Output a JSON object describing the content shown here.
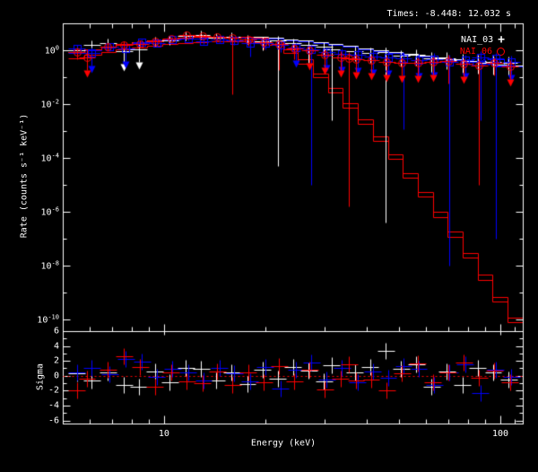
{
  "title": "Times: -8.448: 12.032 s",
  "colors": {
    "background": "#000000",
    "frame": "#ffffff",
    "nai03": "#ffffff",
    "nai06": "#ff0000",
    "nai07": "#0000ff",
    "zero_line": "#ff0000"
  },
  "legend": [
    {
      "label": "NAI_03",
      "symbol": "plus",
      "color": "#ffffff"
    },
    {
      "label": "NAI_06",
      "symbol": "circle",
      "color": "#ff0000"
    },
    {
      "label": "NAI_07",
      "symbol": "square",
      "color": "#0000ff"
    }
  ],
  "axes": {
    "xlabel": "Energy (keV)",
    "ylabel_main": "Rate (counts s⁻¹ keV⁻¹)",
    "ylabel_sigma": "Sigma",
    "x_major_ticks": [
      10,
      100
    ],
    "x_major_labels": [
      "10",
      "100"
    ],
    "x_minor_ticks": [
      6,
      7,
      8,
      9,
      20,
      30,
      40,
      50,
      60,
      70,
      80,
      90,
      110
    ],
    "y_major_exponents": [
      0,
      -2,
      -4,
      -6,
      -8,
      -10
    ],
    "y_minor_exponents": [
      -1,
      -3,
      -5,
      -7,
      -9
    ],
    "sigma_major_ticks": [
      6,
      4,
      2,
      0,
      -2,
      -4,
      -6
    ],
    "sigma_minor_ticks": [
      5,
      3,
      1,
      -1,
      -3,
      -5
    ]
  },
  "chart_data": {
    "type": "scatter",
    "subtype": "count-spectrum-with-residuals",
    "x_scale": "log",
    "y_scale": "log",
    "xlim": [
      5.0,
      116.6
    ],
    "ylim": [
      3e-11,
      8.5
    ],
    "sigma_ylim": [
      -6.5,
      6.9
    ],
    "grid": false,
    "legend_position": "top-right-inside",
    "point_format": [
      "energy_keV",
      "rate",
      "err_lo",
      "err_hi",
      "upper_limit"
    ],
    "bin_edges": [
      5.2,
      5.8,
      6.5,
      7.2,
      8.0,
      8.9,
      9.9,
      11.0,
      12.2,
      13.5,
      15.0,
      16.6,
      18.4,
      20.4,
      22.6,
      25.0,
      27.7,
      30.7,
      34.0,
      37.7,
      41.8,
      46.3,
      51.3,
      56.8,
      63.0,
      69.8,
      77.3,
      85.6,
      94.9,
      105.1,
      116.5
    ],
    "models": [
      {
        "name": "NAI_03 model",
        "color": "#ffffff",
        "values": [
          0.85,
          1.1,
          1.4,
          1.7,
          2.0,
          2.3,
          2.6,
          2.85,
          3.05,
          3.2,
          3.25,
          3.2,
          3.05,
          2.85,
          2.6,
          2.3,
          2.0,
          1.7,
          1.45,
          1.2,
          1.0,
          0.85,
          0.72,
          0.62,
          0.53,
          0.46,
          0.4,
          0.35,
          0.3,
          0.27
        ]
      },
      {
        "name": "NAI_07 model",
        "color": "#0000ff",
        "values": [
          0.78,
          1.0,
          1.3,
          1.56,
          1.84,
          2.12,
          2.4,
          2.62,
          2.8,
          2.94,
          3.0,
          2.94,
          2.8,
          2.62,
          2.4,
          2.12,
          1.84,
          1.56,
          1.33,
          1.1,
          0.92,
          0.78,
          0.66,
          0.57,
          0.49,
          0.42,
          0.37,
          0.32,
          0.28,
          0.25
        ]
      },
      {
        "name": "NAI_06 model lower",
        "color": "#ff0000",
        "values": [
          0.5,
          0.66,
          0.85,
          1.05,
          1.25,
          1.45,
          1.65,
          1.85,
          2.0,
          2.1,
          2.15,
          2.1,
          1.95,
          1.6,
          0.8,
          0.32,
          0.1,
          0.028,
          0.0075,
          0.0019,
          0.00044,
          9e-05,
          1.8e-05,
          3.6e-06,
          6.5e-07,
          1.2e-07,
          2e-08,
          3e-09,
          4.7e-10,
          8e-11
        ]
      },
      {
        "name": "NAI_06 model",
        "color": "#ff0000",
        "values": [
          0.85,
          1.1,
          1.4,
          1.7,
          2.0,
          2.3,
          2.6,
          2.85,
          3.05,
          3.2,
          3.25,
          3.15,
          2.95,
          2.4,
          1.1,
          0.45,
          0.14,
          0.04,
          0.011,
          0.0028,
          0.00065,
          0.00014,
          2.8e-05,
          5.5e-06,
          1e-06,
          1.8e-07,
          3e-08,
          4.5e-09,
          7e-10,
          1.2e-10
        ]
      }
    ],
    "series": [
      {
        "name": "NAI_03",
        "color": "#ffffff",
        "marker": "plus",
        "points": [
          [
            5.5,
            1.0,
            0.55,
            1.5,
            0
          ],
          [
            6.1,
            1.55,
            1.0,
            2.1,
            0
          ],
          [
            6.8,
            1.8,
            1.25,
            2.4,
            0
          ],
          [
            7.6,
            0.95,
            0.3,
            1.6,
            1
          ],
          [
            8.4,
            1.05,
            0.33,
            1.7,
            1
          ],
          [
            9.4,
            2.1,
            1.6,
            2.7,
            0
          ],
          [
            10.4,
            2.4,
            1.9,
            2.9,
            0
          ],
          [
            11.6,
            3.4,
            2.9,
            3.9,
            0
          ],
          [
            12.9,
            3.8,
            3.3,
            4.3,
            0
          ],
          [
            14.3,
            2.9,
            2.4,
            3.4,
            0
          ],
          [
            15.9,
            3.1,
            2.6,
            3.7,
            0
          ],
          [
            17.7,
            2.5,
            1.9,
            3.1,
            0
          ],
          [
            19.6,
            2.2,
            1.0,
            2.9,
            0
          ],
          [
            21.8,
            2.3,
            5e-05,
            3.0,
            0
          ],
          [
            24.2,
            1.9,
            1.1,
            2.5,
            0
          ],
          [
            26.9,
            1.6,
            0.35,
            2.2,
            0
          ],
          [
            29.9,
            1.35,
            0.6,
            1.9,
            0
          ],
          [
            31.5,
            1.1,
            0.0025,
            1.6,
            0
          ],
          [
            36.9,
            0.9,
            0.4,
            1.4,
            0
          ],
          [
            41.0,
            0.8,
            0.35,
            1.25,
            0
          ],
          [
            45.6,
            0.85,
            4e-07,
            1.3,
            0
          ],
          [
            50.6,
            0.62,
            0.25,
            1.0,
            0
          ],
          [
            56.2,
            0.66,
            0.28,
            1.05,
            0
          ],
          [
            62.5,
            0.5,
            0.15,
            0.85,
            0
          ],
          [
            69.4,
            0.52,
            0.2,
            0.88,
            0
          ],
          [
            77.1,
            0.44,
            0.15,
            0.75,
            0
          ],
          [
            85.7,
            0.4,
            0.14,
            0.68,
            0
          ],
          [
            95.2,
            0.38,
            0.13,
            0.65,
            0
          ],
          [
            105.8,
            0.35,
            0.12,
            0.6,
            0
          ]
        ],
        "sigma": [
          0.3,
          -0.6,
          0.5,
          -1.3,
          -1.5,
          0.6,
          -0.9,
          1.0,
          0.9,
          -0.6,
          0.4,
          -1.1,
          0.8,
          -0.4,
          1.2,
          0.7,
          -0.8,
          1.4,
          0.5,
          1.2,
          3.3,
          0.9,
          1.5,
          -1.5,
          0.6,
          -1.3,
          1.0,
          0.4,
          -0.5
        ]
      },
      {
        "name": "NAI_07",
        "color": "#0000ff",
        "marker": "square",
        "points": [
          [
            5.5,
            1.15,
            0.75,
            1.55,
            0
          ],
          [
            6.1,
            0.8,
            0.3,
            1.3,
            1
          ],
          [
            6.9,
            1.35,
            0.95,
            1.8,
            0
          ],
          [
            7.7,
            1.2,
            0.5,
            1.8,
            1
          ],
          [
            8.6,
            2.0,
            1.5,
            2.5,
            0
          ],
          [
            9.5,
            1.9,
            1.4,
            2.45,
            0
          ],
          [
            10.6,
            2.6,
            2.1,
            3.1,
            0
          ],
          [
            11.8,
            2.75,
            2.25,
            3.25,
            0
          ],
          [
            13.1,
            2.2,
            1.7,
            2.7,
            0
          ],
          [
            14.6,
            2.6,
            2.0,
            3.2,
            0
          ],
          [
            16.2,
            2.25,
            1.6,
            2.9,
            0
          ],
          [
            18.0,
            1.8,
            0.6,
            2.5,
            0
          ],
          [
            20.0,
            1.9,
            1.1,
            2.5,
            0
          ],
          [
            22.2,
            1.6,
            0.85,
            2.2,
            0
          ],
          [
            24.7,
            1.25,
            0.5,
            1.85,
            1
          ],
          [
            27.4,
            1.05,
            1e-05,
            1.6,
            0
          ],
          [
            30.4,
            0.85,
            0.3,
            1.3,
            1
          ],
          [
            33.8,
            0.75,
            0.3,
            1.2,
            1
          ],
          [
            37.6,
            0.68,
            0.25,
            1.1,
            1
          ],
          [
            41.7,
            0.6,
            0.22,
            0.95,
            1
          ],
          [
            46.4,
            0.55,
            0.18,
            0.9,
            1
          ],
          [
            51.5,
            0.5,
            0.0012,
            0.85,
            0
          ],
          [
            57.2,
            0.44,
            0.15,
            0.75,
            1
          ],
          [
            63.6,
            0.46,
            0.16,
            0.78,
            1
          ],
          [
            70.6,
            0.38,
            1e-08,
            0.68,
            0
          ],
          [
            78.5,
            0.42,
            0.13,
            0.7,
            1
          ],
          [
            87.2,
            0.55,
            0.0025,
            0.9,
            0
          ],
          [
            96.9,
            0.5,
            1e-07,
            0.82,
            0
          ],
          [
            107.7,
            0.36,
            0.12,
            0.62,
            1
          ]
        ],
        "sigma": [
          0.4,
          1.1,
          0.2,
          2.2,
          1.9,
          -0.2,
          0.9,
          0.5,
          -0.6,
          1.0,
          0.3,
          -0.8,
          1.2,
          -1.7,
          0.8,
          1.8,
          -0.5,
          1.1,
          -0.9,
          0.6,
          -0.3,
          1.3,
          0.9,
          -1.2,
          0.5,
          1.5,
          -2.3,
          0.8,
          -0.2
        ]
      },
      {
        "name": "NAI_06",
        "color": "#ff0000",
        "marker": "circle",
        "points": [
          [
            5.5,
            0.85,
            0.45,
            1.25,
            0
          ],
          [
            5.9,
            0.55,
            0.2,
            1.1,
            1
          ],
          [
            6.8,
            1.4,
            0.95,
            1.85,
            0
          ],
          [
            7.6,
            1.6,
            1.1,
            2.1,
            0
          ],
          [
            8.5,
            1.75,
            1.25,
            2.3,
            0
          ],
          [
            9.4,
            2.2,
            1.7,
            2.7,
            0
          ],
          [
            10.5,
            2.7,
            2.2,
            3.2,
            0
          ],
          [
            11.7,
            3.6,
            3.1,
            4.1,
            0
          ],
          [
            13.0,
            3.4,
            2.9,
            3.9,
            0
          ],
          [
            14.4,
            3.1,
            2.5,
            3.6,
            0
          ],
          [
            16.0,
            2.9,
            0.023,
            3.4,
            0
          ],
          [
            17.8,
            2.5,
            1.5,
            3.1,
            0
          ],
          [
            19.8,
            2.0,
            1.1,
            2.6,
            0
          ],
          [
            22.0,
            1.7,
            0.18,
            2.3,
            0
          ],
          [
            24.4,
            1.2,
            0.45,
            1.75,
            0
          ],
          [
            27.1,
            1.0,
            0.3,
            1.5,
            1
          ],
          [
            30.1,
            0.7,
            0.28,
            1.1,
            1
          ],
          [
            33.5,
            0.56,
            0.22,
            0.9,
            1
          ],
          [
            35.5,
            0.5,
            1.6e-06,
            0.85,
            0
          ],
          [
            37.2,
            0.48,
            0.19,
            0.75,
            1
          ],
          [
            41.3,
            0.44,
            0.16,
            0.7,
            1
          ],
          [
            45.9,
            0.38,
            0.15,
            0.62,
            1
          ],
          [
            51.0,
            0.35,
            0.13,
            0.56,
            1
          ],
          [
            56.7,
            0.33,
            0.12,
            0.53,
            1
          ],
          [
            63.0,
            0.38,
            0.14,
            0.6,
            1
          ],
          [
            70.0,
            0.4,
            0.06,
            0.66,
            0
          ],
          [
            77.8,
            0.31,
            0.11,
            0.5,
            1
          ],
          [
            86.4,
            0.28,
            1e-05,
            0.48,
            0
          ],
          [
            96.0,
            0.35,
            0.12,
            0.55,
            0
          ],
          [
            106.7,
            0.25,
            0.09,
            0.42,
            1
          ]
        ],
        "sigma": [
          -2.0,
          -0.4,
          0.8,
          2.6,
          1.2,
          -1.5,
          0.5,
          -0.7,
          -1.0,
          0.6,
          -1.3,
          0.4,
          -0.9,
          1.3,
          -0.7,
          0.8,
          -1.8,
          -0.4,
          1.5,
          -0.6,
          -0.5,
          -2.0,
          0.3,
          1.6,
          -0.9,
          0.5,
          1.8,
          -0.3,
          0.7,
          -0.9
        ]
      }
    ]
  }
}
